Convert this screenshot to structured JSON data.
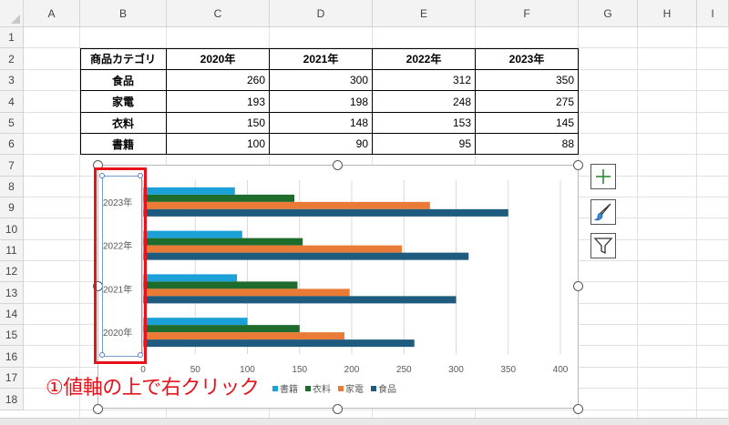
{
  "columns": [
    "A",
    "B",
    "C",
    "D",
    "E",
    "F",
    "G",
    "H",
    "I"
  ],
  "rows": [
    "1",
    "2",
    "3",
    "4",
    "5",
    "6",
    "7",
    "8",
    "9",
    "10",
    "11",
    "12",
    "13",
    "14",
    "15",
    "16",
    "17",
    "18"
  ],
  "table": {
    "header": [
      "商品カテゴリ",
      "2020年",
      "2021年",
      "2022年",
      "2023年"
    ],
    "rows": [
      {
        "category": "食品",
        "values": [
          "260",
          "300",
          "312",
          "350"
        ]
      },
      {
        "category": "家電",
        "values": [
          "193",
          "198",
          "248",
          "275"
        ]
      },
      {
        "category": "衣料",
        "values": [
          "150",
          "148",
          "153",
          "145"
        ]
      },
      {
        "category": "書籍",
        "values": [
          "100",
          "90",
          "95",
          "88"
        ]
      }
    ]
  },
  "chart_data": {
    "type": "bar",
    "orientation": "horizontal",
    "categories": [
      "2023年",
      "2022年",
      "2021年",
      "2020年"
    ],
    "series": [
      {
        "name": "書籍",
        "color": "#1ba1d8",
        "values": [
          88,
          95,
          90,
          100
        ]
      },
      {
        "name": "衣料",
        "color": "#1e6b2e",
        "values": [
          145,
          153,
          148,
          150
        ]
      },
      {
        "name": "家電",
        "color": "#e97b36",
        "values": [
          275,
          248,
          198,
          193
        ]
      },
      {
        "name": "食品",
        "color": "#1e5b7e",
        "values": [
          350,
          312,
          300,
          260
        ]
      }
    ],
    "xlim": [
      0,
      400
    ],
    "xticks": [
      "0",
      "50",
      "100",
      "150",
      "200",
      "250",
      "300",
      "350",
      "400"
    ],
    "grid": true,
    "legend_position": "bottom"
  },
  "annotation": "①値軸の上で右クリック",
  "side_buttons": [
    {
      "icon": "plus-icon"
    },
    {
      "icon": "brush-icon"
    },
    {
      "icon": "filter-icon"
    }
  ],
  "colors": {
    "highlight": "#e8121b",
    "selection": "#4f7fd0"
  }
}
